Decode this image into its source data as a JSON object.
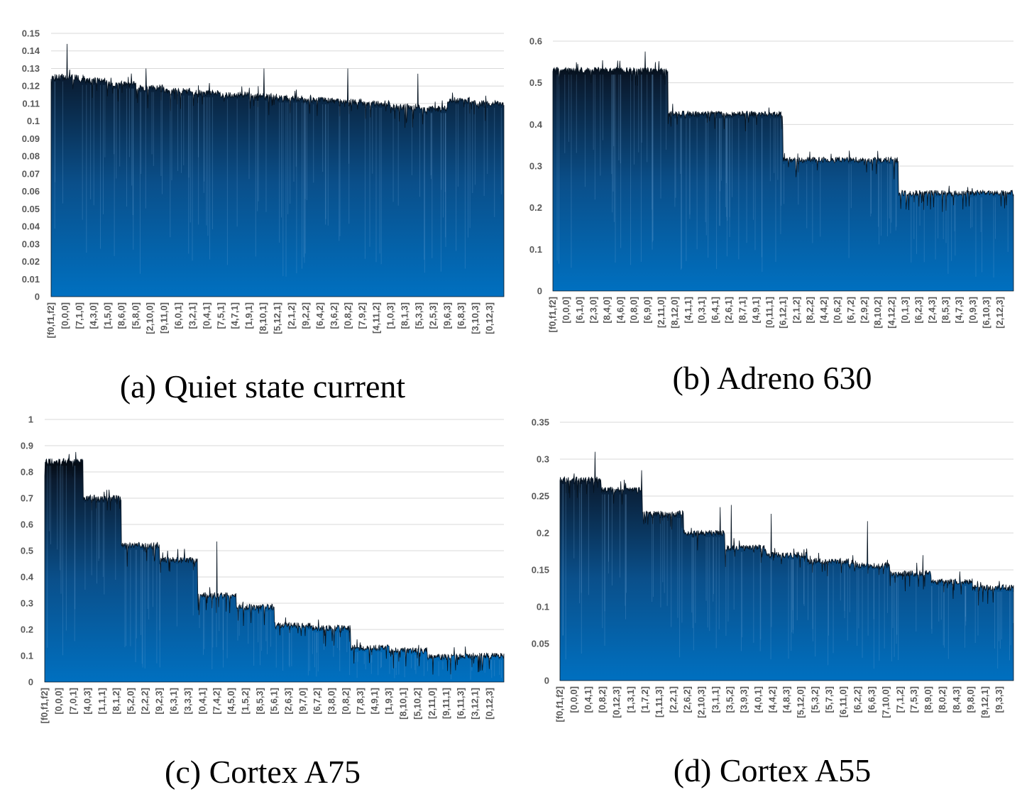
{
  "colors": {
    "bar_top": "#000000",
    "bar_bottom": "#0070c0",
    "grid": "#d9d9d9",
    "tick_text": "#595959"
  },
  "chart_data": [
    {
      "type": "bar",
      "caption": "(a) Quiet state current",
      "ylim": [
        0,
        0.15
      ],
      "yticks": [
        "0",
        "0.01",
        "0.02",
        "0.03",
        "0.04",
        "0.05",
        "0.06",
        "0.07",
        "0.08",
        "0.09",
        "0.1",
        "0.11",
        "0.12",
        "0.13",
        "0.14",
        "0.15"
      ],
      "xlabel_header": "[f0,f1,f2]",
      "xticks": [
        "[0,0,0]",
        "[7,1,0]",
        "[4,3,0]",
        "[1,5,0]",
        "[8,6,0]",
        "[5,8,0]",
        "[2,10,0]",
        "[9,11,0]",
        "[6,0,1]",
        "[3,2,1]",
        "[0,4,1]",
        "[7,5,1]",
        "[4,7,1]",
        "[1,9,1]",
        "[8,10,1]",
        "[5,12,1]",
        "[2,1,2]",
        "[9,2,2]",
        "[6,4,2]",
        "[3,6,2]",
        "[0,8,2]",
        "[7,9,2]",
        "[4,11,2]",
        "[1,0,3]",
        "[8,1,3]",
        "[5,3,3]",
        "[2,5,3]",
        "[9,6,3]",
        "[6,8,3]",
        "[3,10,3]",
        "[0,12,3]"
      ],
      "segments": [
        0.125,
        0.123,
        0.121,
        0.119,
        0.117,
        0.116,
        0.115,
        0.114,
        0.113,
        0.112,
        0.111,
        0.11,
        0.108,
        0.107,
        0.112,
        0.11
      ],
      "spikes": [
        [
          0.035,
          0.144
        ],
        [
          0.21,
          0.13
        ],
        [
          0.47,
          0.13
        ],
        [
          0.655,
          0.13
        ],
        [
          0.81,
          0.127
        ]
      ]
    },
    {
      "type": "bar",
      "caption": "(b) Adreno 630",
      "ylim": [
        0,
        0.6
      ],
      "yticks": [
        "0",
        "0.1",
        "0.2",
        "0.3",
        "0.4",
        "0.5",
        "0.6"
      ],
      "xlabel_header": "[f0,f1,f2]",
      "xticks": [
        "[0,0,0]",
        "[6,1,0]",
        "[2,3,0]",
        "[8,4,0]",
        "[4,6,0]",
        "[0,8,0]",
        "[6,9,0]",
        "[2,11,0]",
        "[8,12,0]",
        "[4,1,1]",
        "[0,3,1]",
        "[6,4,1]",
        "[2,6,1]",
        "[8,7,1]",
        "[4,9,1]",
        "[0,11,1]",
        "[6,12,1]",
        "[2,1,2]",
        "[8,2,2]",
        "[4,4,2]",
        "[0,6,2]",
        "[6,7,2]",
        "[2,9,2]",
        "[8,10,2]",
        "[4,12,2]",
        "[0,1,3]",
        "[6,2,3]",
        "[2,4,3]",
        "[8,5,3]",
        "[4,7,3]",
        "[0,9,3]",
        "[6,10,3]",
        "[2,12,3]"
      ],
      "segments": [
        0.53,
        0.425,
        0.315,
        0.235
      ],
      "spikes": [
        [
          0.2,
          0.575
        ]
      ]
    },
    {
      "type": "bar",
      "caption": "(c) Cortex A75",
      "ylim": [
        0,
        1
      ],
      "yticks": [
        "0",
        "0.1",
        "0.2",
        "0.3",
        "0.4",
        "0.5",
        "0.6",
        "0.7",
        "0.8",
        "0.9",
        "1"
      ],
      "xlabel_header": "[f0,f1,f2]",
      "xticks": [
        "[0,0,0]",
        "[7,0,1]",
        "[4,0,3]",
        "[1,1,1]",
        "[8,1,2]",
        "[5,2,0]",
        "[2,2,2]",
        "[9,2,3]",
        "[6,3,1]",
        "[3,3,3]",
        "[0,4,1]",
        "[7,4,2]",
        "[4,5,0]",
        "[1,5,2]",
        "[8,5,3]",
        "[5,6,1]",
        "[2,6,3]",
        "[9,7,0]",
        "[6,7,2]",
        "[3,8,0]",
        "[0,8,2]",
        "[7,8,3]",
        "[4,9,1]",
        "[1,9,3]",
        "[8,10,1]",
        "[5,10,2]",
        "[2,11,0]",
        "[9,11,1]",
        "[6,11,3]",
        "[3,12,1]",
        "[0,12,3]"
      ],
      "segments": [
        0.84,
        0.7,
        0.52,
        0.465,
        0.33,
        0.285,
        0.215,
        0.205,
        0.13,
        0.12,
        0.095,
        0.1
      ],
      "spikes": [
        [
          0.375,
          0.535
        ]
      ]
    },
    {
      "type": "bar",
      "caption": "(d) Cortex A55",
      "ylim": [
        0,
        0.35
      ],
      "yticks": [
        "0",
        "0.05",
        "0.1",
        "0.15",
        "0.2",
        "0.25",
        "0.3",
        "0.35"
      ],
      "xlabel_header": "[f0,f1,f2]",
      "xticks": [
        "[0,0,0]",
        "[0,4,1]",
        "[0,8,2]",
        "[0,12,3]",
        "[1,3,1]",
        "[1,7,2]",
        "[1,11,3]",
        "[2,2,1]",
        "[2,6,2]",
        "[2,10,3]",
        "[3,1,1]",
        "[3,5,2]",
        "[3,9,3]",
        "[4,0,1]",
        "[4,4,2]",
        "[4,8,3]",
        "[5,12,0]",
        "[5,3,2]",
        "[5,7,3]",
        "[6,11,0]",
        "[6,2,2]",
        "[6,6,3]",
        "[7,10,0]",
        "[7,1,2]",
        "[7,5,3]",
        "[8,9,0]",
        "[8,0,2]",
        "[8,4,3]",
        "[9,8,0]",
        "[9,12,1]",
        "[9,3,3]"
      ],
      "segments": [
        0.272,
        0.258,
        0.226,
        0.2,
        0.18,
        0.17,
        0.162,
        0.156,
        0.145,
        0.134,
        0.126
      ],
      "spikes": [
        [
          0.077,
          0.31
        ],
        [
          0.18,
          0.285
        ],
        [
          0.353,
          0.235
        ],
        [
          0.378,
          0.238
        ],
        [
          0.466,
          0.226
        ],
        [
          0.678,
          0.216
        ],
        [
          0.8,
          0.17
        ]
      ]
    }
  ]
}
